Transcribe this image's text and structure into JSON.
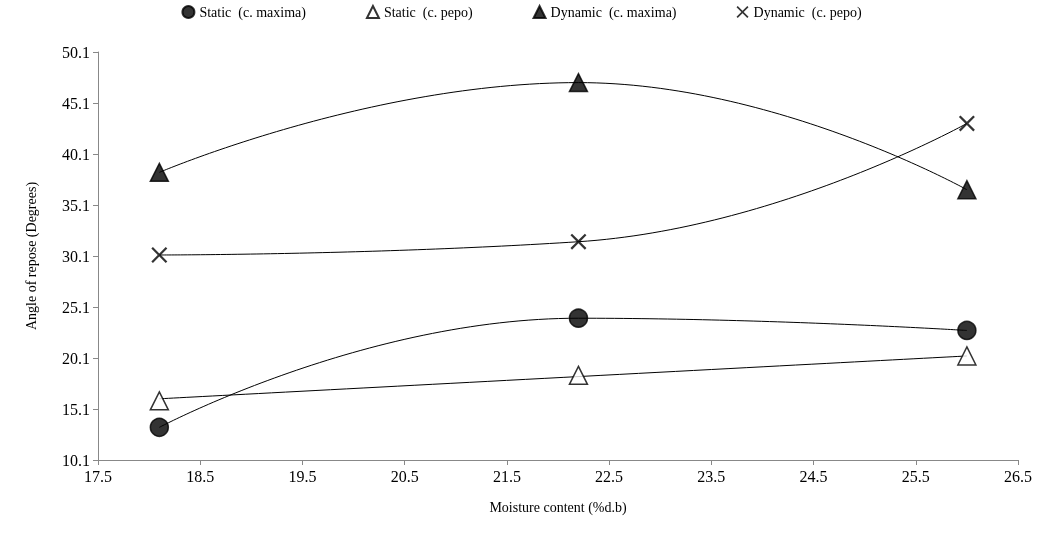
{
  "chart_data": {
    "type": "scatter",
    "xlabel": "Moisture content (%d.b)",
    "ylabel": "Angle of repose (Degrees)",
    "xlim": [
      17.5,
      26.5
    ],
    "xticks": [
      17.5,
      18.5,
      19.5,
      20.5,
      21.5,
      22.5,
      23.5,
      24.5,
      25.5,
      26.5
    ],
    "ylim": [
      10.1,
      50.1
    ],
    "yticks": [
      10.1,
      15.1,
      20.1,
      25.1,
      30.1,
      35.1,
      40.1,
      45.1,
      50.1
    ],
    "grid": false,
    "legend": "top",
    "series": [
      {
        "name": "Static  (c. maxima)",
        "color": "#000000",
        "marker": "circle",
        "x": [
          18.1,
          22.2,
          26.0
        ],
        "values": [
          13.3,
          24.0,
          22.8
        ]
      },
      {
        "name": "Static  (c. pepo)",
        "color": "#ffffff",
        "marker": "triangle",
        "x": [
          18.1,
          22.2,
          26.0
        ],
        "values": [
          15.9,
          18.4,
          20.3
        ]
      },
      {
        "name": "Dynamic  (c. maxima)",
        "color": "#000000",
        "marker": "triangle",
        "x": [
          18.1,
          22.2,
          26.0
        ],
        "values": [
          38.3,
          47.1,
          36.6
        ]
      },
      {
        "name": "Dynamic  (c. pepo)",
        "color": "#000000",
        "marker": "cross",
        "x": [
          18.1,
          22.2,
          26.0
        ],
        "values": [
          30.2,
          31.5,
          43.1
        ]
      },
      {
        "type": "line",
        "color": "#000000",
        "x": [
          18.1,
          22.2,
          26.0
        ],
        "values": [
          13.3,
          24.0,
          22.8
        ]
      },
      {
        "type": "line",
        "color": "#000000",
        "x": [
          18.1,
          26.0
        ],
        "values": [
          16.1,
          20.3
        ]
      },
      {
        "type": "line",
        "color": "#000000",
        "x": [
          18.1,
          22.2,
          26.0
        ],
        "values": [
          38.3,
          47.1,
          36.6
        ]
      },
      {
        "type": "line",
        "color": "#000000",
        "x": [
          18.1,
          22.2,
          26.0
        ],
        "values": [
          30.2,
          31.5,
          43.1
        ]
      }
    ]
  }
}
